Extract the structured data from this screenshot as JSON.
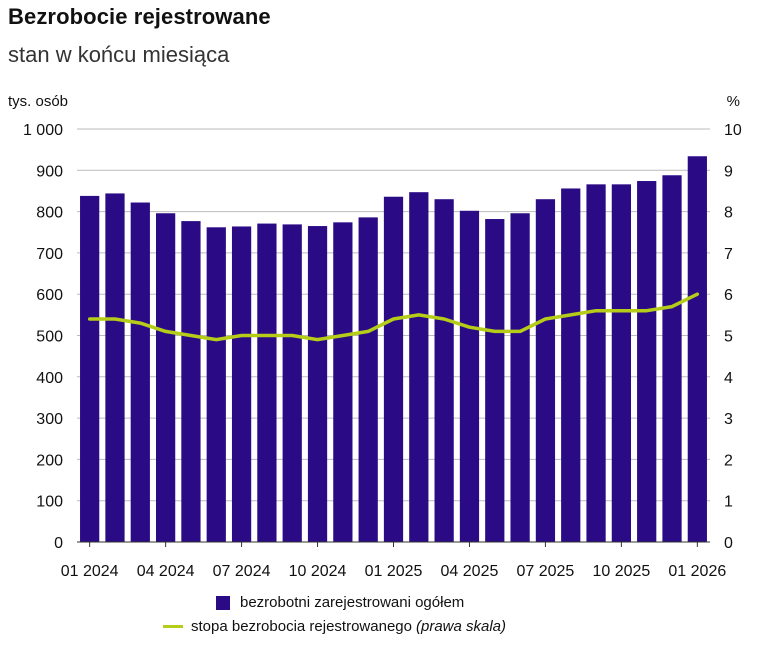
{
  "title": "Bezrobocie rejestrowane",
  "subtitle": "stan w końcu miesiąca",
  "colors": {
    "bars": "#2B0A85",
    "line": "#B5CC18",
    "grid": "#BBBBBB"
  },
  "chart_data": {
    "type": "bar",
    "y_left_unit": "tys. osób",
    "y_right_unit": "%",
    "y_left_ticks": [
      "1 000",
      "900",
      "800",
      "700",
      "600",
      "500",
      "400",
      "300",
      "200",
      "100",
      "0"
    ],
    "y_right_ticks": [
      "10",
      "9",
      "8",
      "7",
      "6",
      "5",
      "4",
      "3",
      "2",
      "1",
      "0"
    ],
    "ylim_left": [
      0,
      1000
    ],
    "ylim_right": [
      0,
      10
    ],
    "x_tick_labels": [
      "01 2024",
      "04 2024",
      "07 2024",
      "10 2024",
      "01 2025",
      "04 2025",
      "07 2025",
      "10 2025",
      "01 2026"
    ],
    "x_tick_positions": [
      0,
      3,
      6,
      9,
      12,
      15,
      18,
      21,
      24
    ],
    "categories": [
      "01 2024",
      "02 2024",
      "03 2024",
      "04 2024",
      "05 2024",
      "06 2024",
      "07 2024",
      "08 2024",
      "09 2024",
      "10 2024",
      "11 2024",
      "12 2024",
      "01 2025",
      "02 2025",
      "03 2025",
      "04 2025",
      "05 2025",
      "06 2025",
      "07 2025",
      "08 2025",
      "09 2025",
      "10 2025",
      "11 2025",
      "12 2025",
      "01 2026"
    ],
    "series": [
      {
        "name": "bezrobotni zarejestrowani ogółem",
        "type": "bar",
        "axis": "left",
        "values": [
          838,
          844,
          822,
          796,
          777,
          762,
          764,
          771,
          769,
          765,
          774,
          786,
          836,
          847,
          830,
          802,
          782,
          796,
          830,
          856,
          866,
          866,
          874,
          888,
          934
        ]
      },
      {
        "name": "stopa bezrobocia rejestrowanego",
        "type": "line",
        "axis": "right",
        "values": [
          5.4,
          5.4,
          5.3,
          5.1,
          5.0,
          4.9,
          5.0,
          5.0,
          5.0,
          4.9,
          5.0,
          5.1,
          5.4,
          5.5,
          5.4,
          5.2,
          5.1,
          5.1,
          5.4,
          5.5,
          5.6,
          5.6,
          5.6,
          5.7,
          6.0
        ]
      }
    ],
    "legend": {
      "position": "bottom",
      "bar_label": "bezrobotni zarejestrowani ogółem",
      "line_label": "stopa bezrobocia rejestrowanego",
      "line_note": "(prawa skala)"
    },
    "grid": true
  }
}
